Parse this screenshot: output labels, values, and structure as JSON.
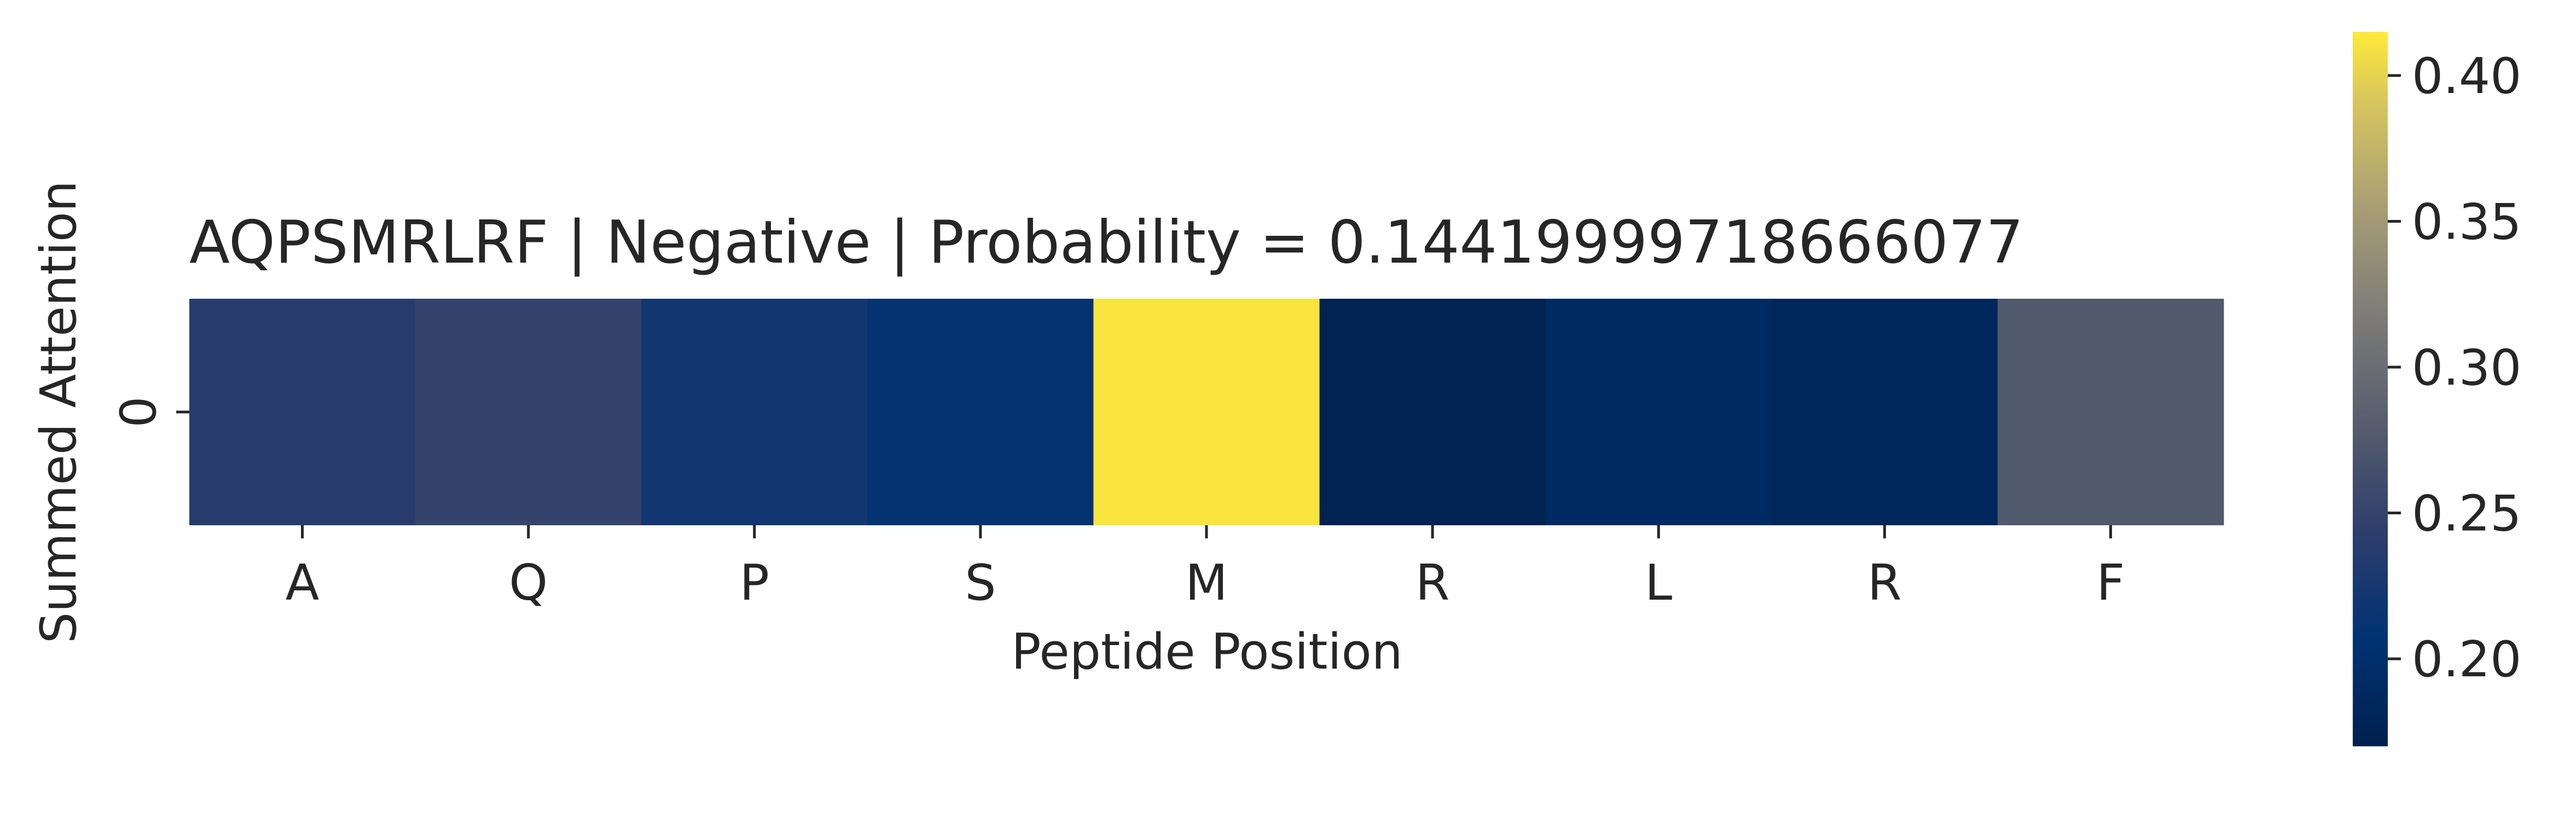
{
  "chart_data": {
    "type": "heatmap",
    "title": "AQPSMRLRF | Negative | Probability = 0.14419999718666077",
    "xlabel": "Peptide Position",
    "ylabel": "Summed Attention",
    "x_categories": [
      "A",
      "Q",
      "P",
      "S",
      "M",
      "R",
      "L",
      "R",
      "F"
    ],
    "y_categories": [
      "0"
    ],
    "values": [
      [
        0.238,
        0.249,
        0.221,
        0.211,
        0.412,
        0.176,
        0.19,
        0.184,
        0.275
      ]
    ],
    "colormap": "cividis",
    "colorbar": {
      "vmin": 0.17,
      "vmax": 0.415,
      "ticks": [
        0.2,
        0.25,
        0.3,
        0.35,
        0.4
      ],
      "tick_labels": [
        "0.20",
        "0.25",
        "0.30",
        "0.35",
        "0.40"
      ]
    }
  }
}
